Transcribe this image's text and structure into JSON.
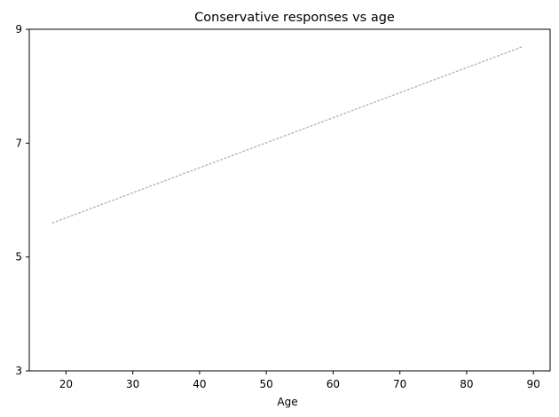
{
  "chart_data": {
    "type": "line",
    "title": "Conservative responses vs age",
    "xlabel": "Age",
    "ylabel": "",
    "xlim": [
      14.5,
      92.5
    ],
    "ylim": [
      3,
      9
    ],
    "xticks": [
      20,
      30,
      40,
      50,
      60,
      70,
      80,
      90
    ],
    "yticks": [
      3,
      5,
      7,
      9
    ],
    "grid": false,
    "legend": "none",
    "series": [
      {
        "x": [
          18,
          88.5
        ],
        "y": [
          5.6,
          8.7
        ],
        "color": "#b8b8b8",
        "style": "dotted"
      }
    ]
  }
}
